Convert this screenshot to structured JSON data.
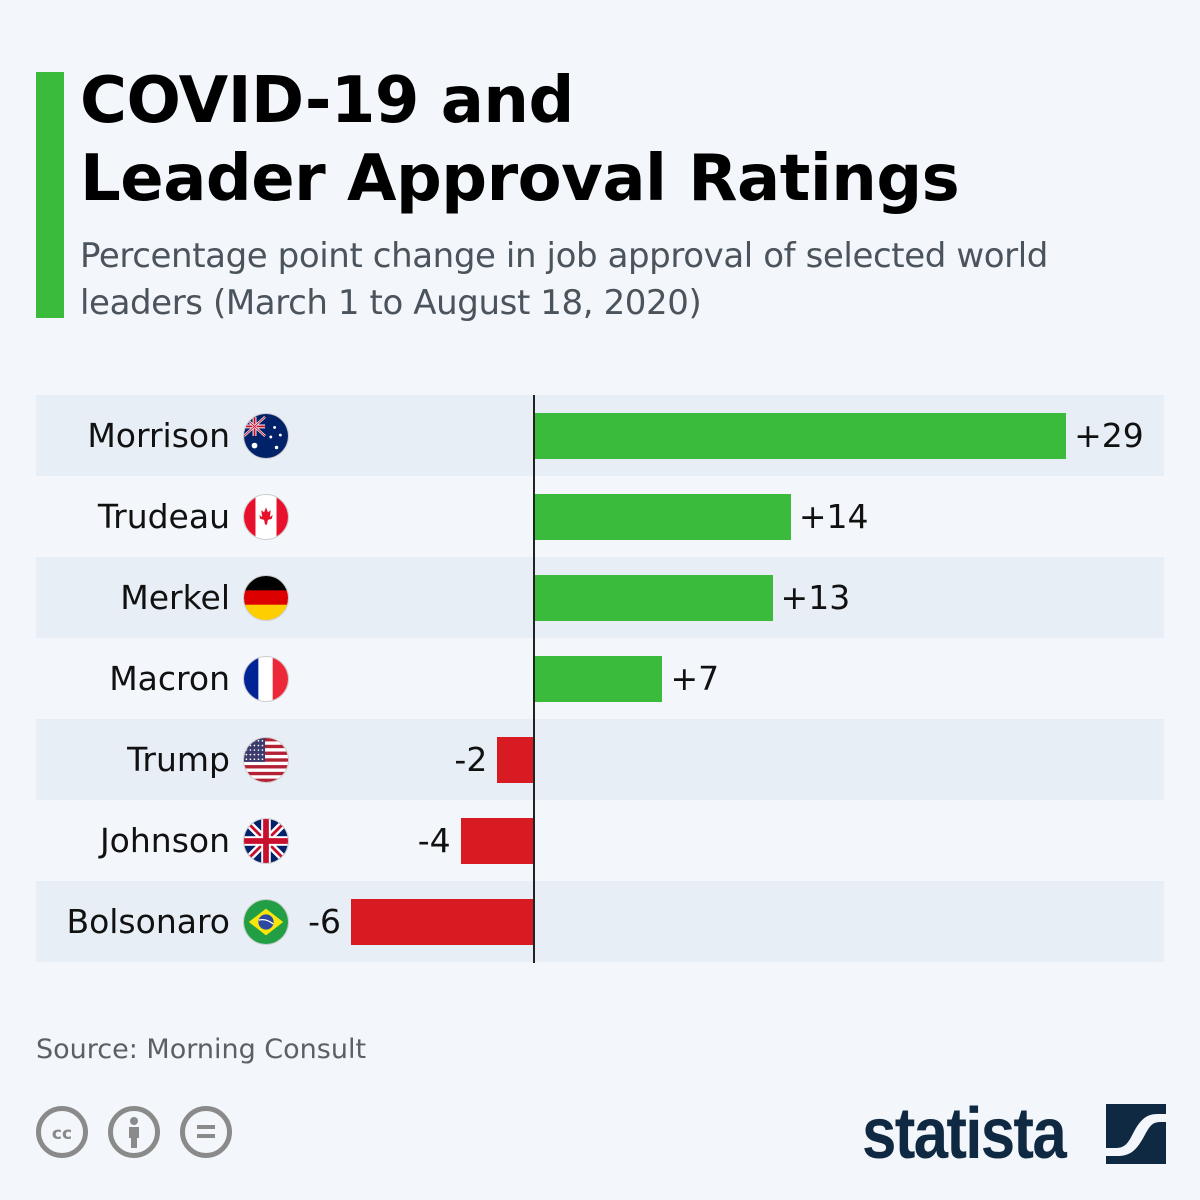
{
  "header": {
    "title_line1": "COVID-19 and",
    "title_line2": "Leader Approval Ratings",
    "subtitle": "Percentage point change in job approval of selected world leaders (March 1 to August 18, 2020)"
  },
  "colors": {
    "positive": "#3bbb3c",
    "negative": "#d81a22",
    "accent": "#3bbb3c",
    "logo": "#0f2942"
  },
  "chart_data": {
    "type": "bar",
    "orientation": "horizontal",
    "title": "COVID-19 and Leader Approval Ratings",
    "subtitle": "Percentage point change in job approval of selected world leaders (March 1 to August 18, 2020)",
    "categories": [
      "Morrison",
      "Trudeau",
      "Merkel",
      "Macron",
      "Trump",
      "Johnson",
      "Bolsonaro"
    ],
    "flags": [
      "australia-flag",
      "canada-flag",
      "germany-flag",
      "france-flag",
      "usa-flag",
      "uk-flag",
      "brazil-flag"
    ],
    "values": [
      29,
      14,
      13,
      7,
      -2,
      -4,
      -6
    ],
    "value_labels": [
      "+29",
      "+14",
      "+13",
      "+7",
      "-2",
      "-4",
      "-6"
    ],
    "xlabel": "",
    "ylabel": "",
    "xlim": [
      -10,
      30
    ],
    "grid": false,
    "legend": "none"
  },
  "footer": {
    "source": "Source: Morning Consult",
    "license_icons": [
      "cc-icon",
      "attribution-icon",
      "no-derivatives-icon"
    ],
    "logo_text": "statista"
  }
}
